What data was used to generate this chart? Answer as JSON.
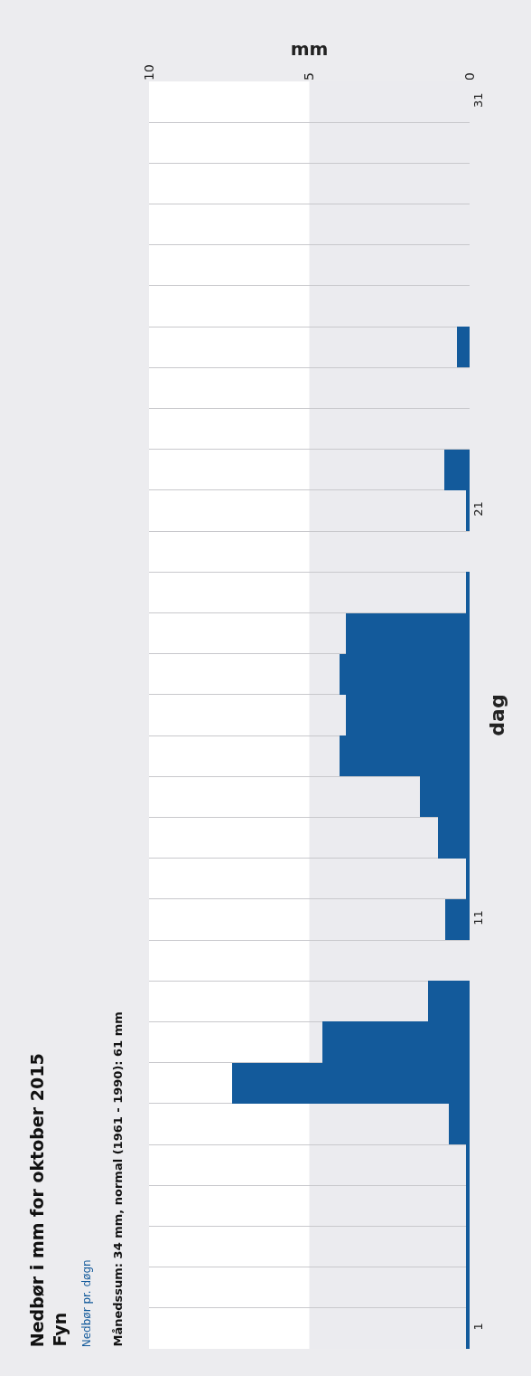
{
  "chart_data": {
    "type": "bar",
    "orientation": "horizontal",
    "title": "Nedbør i mm for oktober 2015",
    "subtitle": "Fyn",
    "annotations": [
      "Månedssum: 34 mm, normal (1961 - 1990): 61 mm"
    ],
    "xlabel": "mm",
    "ylabel": "dag",
    "categories": [
      "31",
      null,
      null,
      null,
      null,
      null,
      null,
      null,
      null,
      null,
      "21",
      null,
      null,
      null,
      null,
      null,
      null,
      null,
      null,
      null,
      "11",
      null,
      null,
      null,
      null,
      null,
      null,
      null,
      null,
      null,
      "1"
    ],
    "series": [
      {
        "name": "Nedbør pr. døgn",
        "color": "#135a9b",
        "values": [
          0,
          0,
          0,
          0,
          0,
          0,
          0.4,
          0,
          0,
          0.8,
          0.1,
          0,
          0.1,
          3.85,
          4.05,
          3.85,
          4.05,
          1.55,
          1.0,
          0.1,
          0.75,
          0,
          1.3,
          4.6,
          7.4,
          0.65,
          0.1,
          0.1,
          0.1,
          0.1,
          0.1
        ]
      }
    ],
    "xlim": [
      10,
      0
    ],
    "xticks": [
      0,
      5,
      10
    ],
    "bands": [
      {
        "axis": "x",
        "from": 0,
        "to": 5,
        "color": "#ebebef"
      }
    ],
    "grid": "y"
  }
}
